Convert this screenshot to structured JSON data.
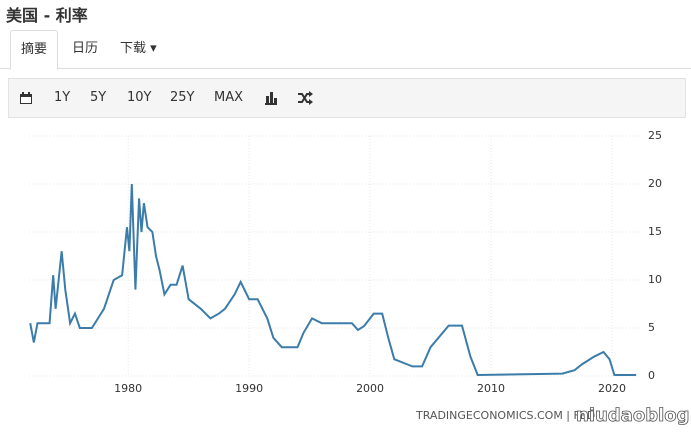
{
  "header": {
    "title": "美国 - 利率"
  },
  "tabs": [
    "摘要",
    "日历",
    "下载"
  ],
  "toolbar": [
    "1Y",
    "5Y",
    "10Y",
    "25Y",
    "MAX"
  ],
  "footer": {
    "source": "TRADINGECONOMICS.COM | FED",
    "watermark": "niudaoblog.com"
  },
  "chart_data": {
    "type": "line",
    "color": "#3b7cab",
    "grid": true,
    "x": [
      1971.9,
      1972.2,
      1972.5,
      1973.5,
      1973.8,
      1974.0,
      1974.5,
      1974.8,
      1975.2,
      1975.6,
      1976.0,
      1977.0,
      1977.5,
      1978.0,
      1978.8,
      1979.5,
      1979.9,
      1980.1,
      1980.3,
      1980.6,
      1980.9,
      1981.1,
      1981.3,
      1981.6,
      1982.0,
      1982.3,
      1982.6,
      1983.0,
      1983.5,
      1984.0,
      1984.5,
      1985.0,
      1986.0,
      1986.8,
      1987.5,
      1988.0,
      1988.8,
      1989.3,
      1990.0,
      1990.7,
      1991.5,
      1992.0,
      1992.7,
      1994.0,
      1994.5,
      1995.2,
      1996.0,
      1997.0,
      1998.5,
      1999.0,
      1999.5,
      2000.3,
      2001.0,
      2001.5,
      2002.0,
      2003.0,
      2003.5,
      2004.3,
      2005.0,
      2006.5,
      2007.6,
      2008.3,
      2008.9,
      2015.9,
      2016.9,
      2017.5,
      2018.5,
      2019.3,
      2019.8,
      2020.2,
      2022.0
    ],
    "values": [
      5.5,
      3.5,
      5.5,
      5.5,
      10.5,
      7,
      13,
      9,
      5.5,
      6.5,
      5,
      5,
      6,
      7,
      10,
      10.5,
      15.5,
      13,
      20,
      9,
      18.5,
      15,
      18,
      15.5,
      15,
      12.5,
      11,
      8.5,
      9.5,
      9.5,
      11.5,
      8,
      7,
      6,
      6.5,
      7,
      8.5,
      9.8,
      8,
      8,
      6,
      4,
      3,
      3,
      4.5,
      6,
      5.5,
      5.5,
      5.5,
      4.8,
      5.2,
      6.5,
      6.5,
      4,
      1.75,
      1.25,
      1,
      1,
      3,
      5.25,
      5.25,
      2,
      0.1,
      0.25,
      0.6,
      1.2,
      2,
      2.5,
      1.75,
      0.1,
      0.1
    ],
    "xlim": [
      1971.8,
      2022.4
    ],
    "xticks": [
      1980,
      1990,
      2000,
      2010,
      2020
    ],
    "ylim": [
      0,
      25
    ],
    "yticks": [
      0,
      5,
      10,
      15,
      20,
      25
    ]
  }
}
